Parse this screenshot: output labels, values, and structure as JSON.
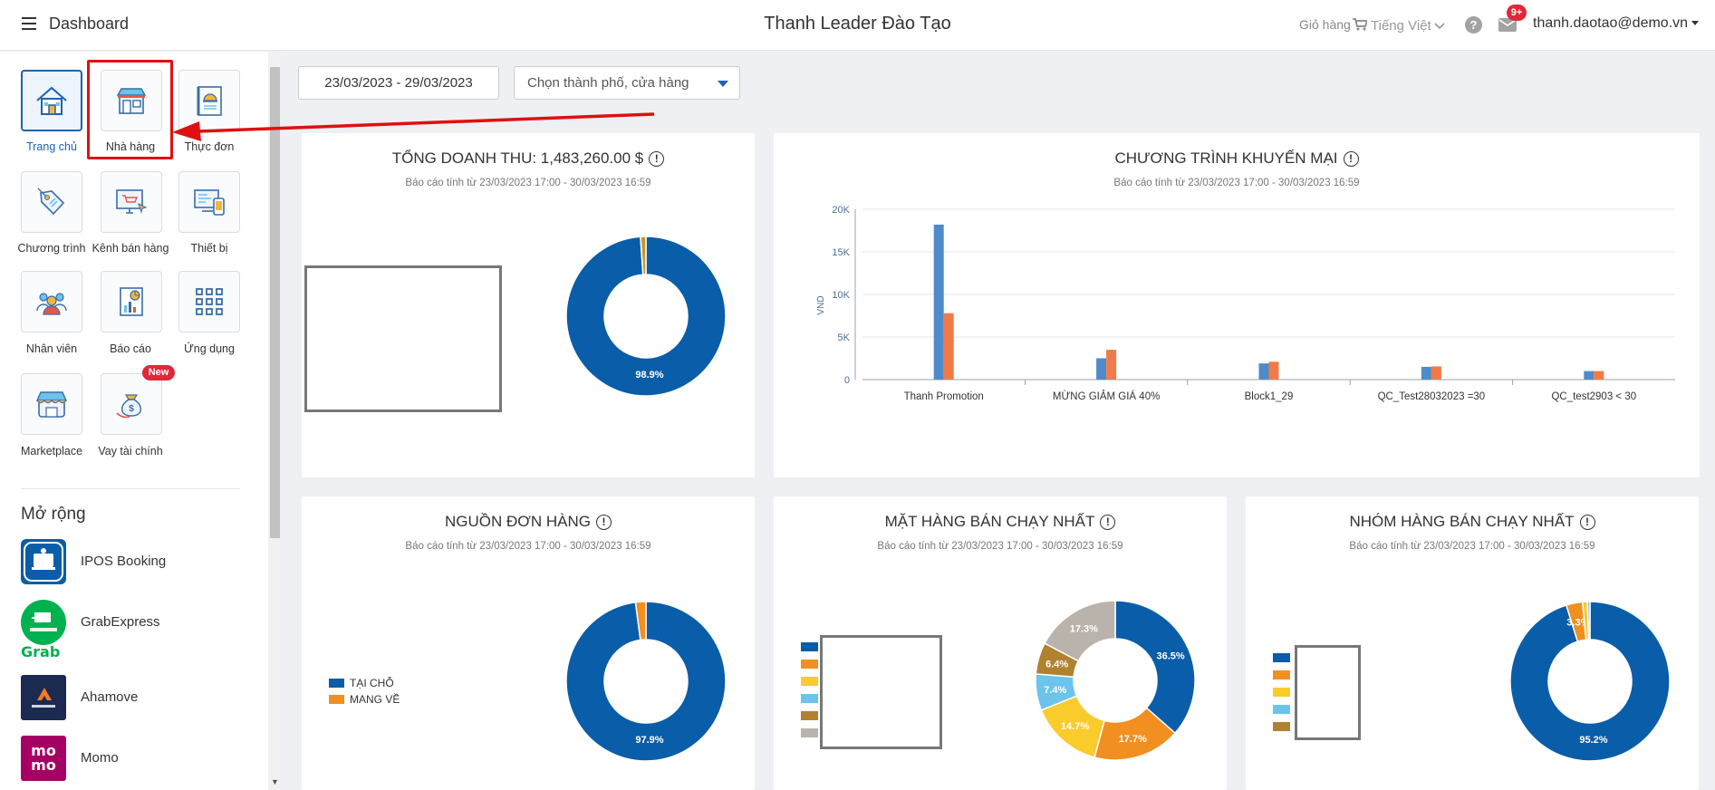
{
  "topbar": {
    "menu_label": "Dashboard",
    "org_title": "Thanh Leader Đào Tạo",
    "cart_label": "Giỏ hàng",
    "language": "Tiếng Việt",
    "help_label": "?",
    "mail_badge": "9+",
    "user_email": "thanh.daotao@demo.vn"
  },
  "sidebar": {
    "tiles": [
      {
        "label": "Trang chủ",
        "icon": "home-icon",
        "active": true
      },
      {
        "label": "Nhà hàng",
        "icon": "restaurant-icon",
        "active": false
      },
      {
        "label": "Thực đơn",
        "icon": "menu-book-icon",
        "active": false
      },
      {
        "label": "Chương trình",
        "icon": "price-tag-icon",
        "active": false
      },
      {
        "label": "Kênh bán hàng",
        "icon": "sales-channel-icon",
        "active": false
      },
      {
        "label": "Thiết bị",
        "icon": "devices-icon",
        "active": false
      },
      {
        "label": "Nhân viên",
        "icon": "staff-icon",
        "active": false
      },
      {
        "label": "Báo cáo",
        "icon": "report-icon",
        "active": false
      },
      {
        "label": "Ứng dụng",
        "icon": "apps-grid-icon",
        "active": false
      },
      {
        "label": "Marketplace",
        "icon": "marketplace-icon",
        "active": false
      },
      {
        "label": "Vay tài chính",
        "icon": "loan-money-icon",
        "active": false
      }
    ],
    "new_badge": "New",
    "extensions_title": "Mở rộng",
    "extensions": [
      {
        "name": "IPOS Booking",
        "icon": "ipos-booking-logo",
        "color": "#0a5da8"
      },
      {
        "name": "GrabExpress",
        "icon": "grabexpress-logo",
        "color": "#00b14f",
        "sub": "Grab"
      },
      {
        "name": "Ahamove",
        "icon": "ahamove-logo",
        "color": "#1a2a50"
      },
      {
        "name": "Momo",
        "icon": "momo-logo",
        "color": "#a50064",
        "logo_text": "mo mo"
      }
    ]
  },
  "filters": {
    "date_range": "23/03/2023 - 29/03/2023",
    "city_placeholder": "Chọn thành phố, cửa hàng"
  },
  "colors": {
    "primary": "#1d63b0",
    "donut_blue": "#0a5da8",
    "orange": "#f18f21",
    "bar_blue": "#4f8bc9",
    "bar_orange": "#f27a46",
    "yellow": "#f9cb2b",
    "light_blue": "#6cc3ec",
    "brown": "#b0822f",
    "gray": "#b9b3ab"
  },
  "cards": {
    "revenue": {
      "title": "TỔNG DOANH THU: 1,483,260.00 $",
      "subtitle": "Báo cáo tính từ 23/03/2023 17:00 - 30/03/2023 16:59"
    },
    "promotion": {
      "title": "CHƯƠNG TRÌNH KHUYẾN MẠI",
      "subtitle": "Báo cáo tính từ 23/03/2023 17:00 - 30/03/2023 16:59"
    },
    "order_source": {
      "title": "NGUỒN ĐƠN HÀNG",
      "subtitle": "Báo cáo tính từ 23/03/2023 17:00 - 30/03/2023 16:59"
    },
    "top_items": {
      "title": "MẶT HÀNG BÁN CHẠY NHẤT",
      "subtitle": "Báo cáo tính từ 23/03/2023 17:00 - 30/03/2023 16:59"
    },
    "top_groups": {
      "title": "NHÓM HÀNG BÁN CHẠY NHẤT",
      "subtitle": "Báo cáo tính từ 23/03/2023 17:00 - 30/03/2023 16:59"
    }
  },
  "chart_data": [
    {
      "id": "revenue",
      "type": "pie",
      "values": [
        98.9,
        1.1
      ],
      "colors": [
        "#0a5da8",
        "#c9962e"
      ],
      "labels_shown": [
        "98.9%",
        ""
      ]
    },
    {
      "id": "promotion",
      "type": "bar",
      "categories": [
        "Thanh Promotion",
        "MỪNG GIẢM GIÁ 40%",
        "Block1_29",
        "QC_Test28032023 =30",
        "QC_test2903 < 30"
      ],
      "series": [
        {
          "values": [
            18200,
            2500,
            1900,
            1500,
            1000
          ],
          "color": "#4f8bc9"
        },
        {
          "values": [
            7800,
            3500,
            2100,
            1550,
            1000
          ],
          "color": "#f27a46"
        }
      ],
      "ylabel": "VND",
      "ylim": [
        0,
        20000
      ],
      "yticks": [
        0,
        5000,
        10000,
        15000,
        20000
      ],
      "ytick_labels": [
        "0",
        "5K",
        "10K",
        "15K",
        "20K"
      ],
      "grid": true
    },
    {
      "id": "order_source",
      "type": "pie",
      "values": [
        97.9,
        2.1
      ],
      "colors": [
        "#0a5da8",
        "#f18f21"
      ],
      "labels_shown": [
        "97.9%",
        ""
      ],
      "legend": [
        "TẠI CHỖ",
        "MANG VỀ"
      ]
    },
    {
      "id": "top_items",
      "type": "pie",
      "values": [
        36.5,
        17.7,
        14.7,
        7.4,
        6.4,
        17.3
      ],
      "colors": [
        "#0a5da8",
        "#f18f21",
        "#f9cb2b",
        "#6cc3ec",
        "#b0822f",
        "#b9b3ab"
      ],
      "labels_shown": [
        "36.5%",
        "17.7%",
        "14.7%",
        "7.4%",
        "6.4%",
        "17.3%"
      ]
    },
    {
      "id": "top_groups",
      "type": "pie",
      "values": [
        95.2,
        3.3,
        1.0,
        0.5
      ],
      "colors": [
        "#0a5da8",
        "#f18f21",
        "#f9cb2b",
        "#6cc3ec"
      ],
      "labels_shown": [
        "95.2%",
        "3.3%",
        "",
        ""
      ]
    }
  ]
}
